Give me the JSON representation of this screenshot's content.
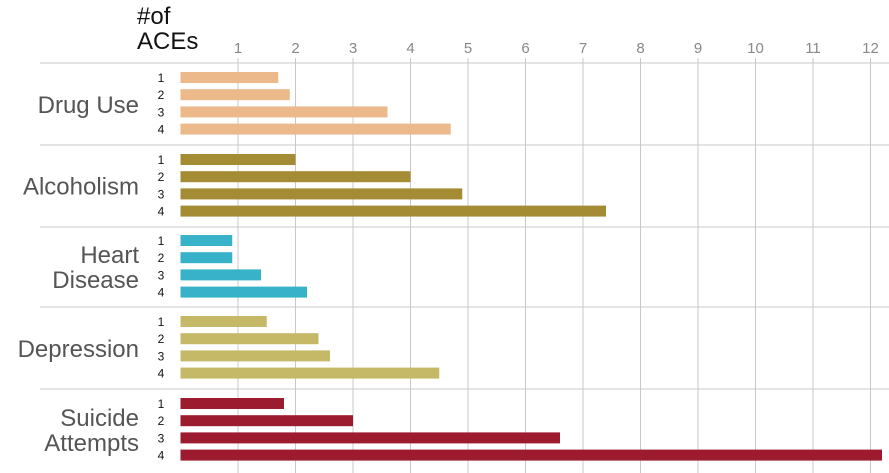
{
  "chart_data": {
    "type": "bar",
    "orientation": "horizontal",
    "y_title_lines": [
      "#of",
      "ACEs"
    ],
    "x_ticks": [
      1,
      2,
      3,
      4,
      5,
      6,
      7,
      8,
      9,
      10,
      11,
      12
    ],
    "xlim": [
      0,
      12.2
    ],
    "grid": true,
    "groups": [
      {
        "label_lines": [
          "Drug Use"
        ],
        "color": "#ECB98B",
        "bars": [
          {
            "label": "1",
            "value": 1.7
          },
          {
            "label": "2",
            "value": 1.9
          },
          {
            "label": "3",
            "value": 3.6
          },
          {
            "label": "4",
            "value": 4.7
          }
        ]
      },
      {
        "label_lines": [
          "Alcoholism"
        ],
        "color": "#A48C34",
        "bars": [
          {
            "label": "1",
            "value": 2.0
          },
          {
            "label": "2",
            "value": 4.0
          },
          {
            "label": "3",
            "value": 4.9
          },
          {
            "label": "4",
            "value": 7.4
          }
        ]
      },
      {
        "label_lines": [
          "Heart",
          "Disease"
        ],
        "color": "#38B2C9",
        "bars": [
          {
            "label": "1",
            "value": 0.9
          },
          {
            "label": "2",
            "value": 0.9
          },
          {
            "label": "3",
            "value": 1.4
          },
          {
            "label": "4",
            "value": 2.2
          }
        ]
      },
      {
        "label_lines": [
          "Depression"
        ],
        "color": "#C5B866",
        "bars": [
          {
            "label": "1",
            "value": 1.5
          },
          {
            "label": "2",
            "value": 2.4
          },
          {
            "label": "3",
            "value": 2.6
          },
          {
            "label": "4",
            "value": 4.5
          }
        ]
      },
      {
        "label_lines": [
          "Suicide",
          "Attempts"
        ],
        "color": "#9D1B2E",
        "bars": [
          {
            "label": "1",
            "value": 1.8
          },
          {
            "label": "2",
            "value": 3.0
          },
          {
            "label": "3",
            "value": 6.6
          },
          {
            "label": "4",
            "value": 12.2
          }
        ]
      }
    ]
  }
}
